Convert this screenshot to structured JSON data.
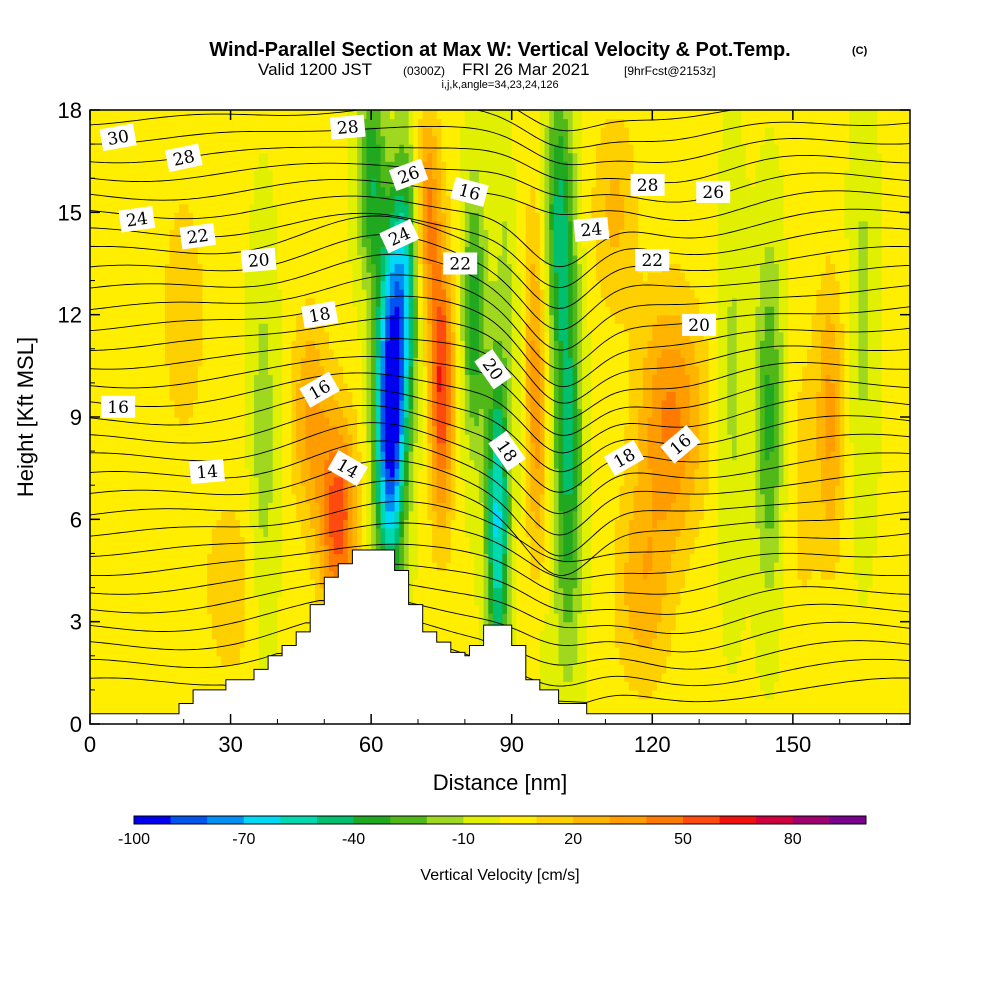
{
  "chart_data": {
    "type": "heatmap",
    "title": "Wind-Parallel Section at Max W: Vertical Velocity & Pot.Temp.",
    "title_mark": "(C)",
    "subtitle_prefix": "Valid 1200 JST",
    "subtitle_utc": "(0300Z)",
    "subtitle_date": "FRI 26 Mar 2021",
    "subtitle_fcst": "[9hrFcst@2153z]",
    "subtitle2": "i,j,k,angle=34,23,24,126",
    "xlabel": "Distance [nm]",
    "ylabel": "Height [Kft MSL]",
    "xlim": [
      0,
      175
    ],
    "ylim": [
      0,
      18
    ],
    "xticks": [
      0,
      30,
      60,
      90,
      120,
      150
    ],
    "yticks": [
      0,
      3,
      6,
      9,
      12,
      15,
      18
    ],
    "colorbar": {
      "label": "Vertical Velocity [cm/s]",
      "min": -100,
      "max": 100,
      "tick_labels": [
        "-100",
        "-70",
        "-40",
        "-10",
        "20",
        "50",
        "80"
      ],
      "tick_values": [
        -100,
        -70,
        -40,
        -10,
        20,
        50,
        80
      ],
      "colors": [
        "#0000ee",
        "#0055f0",
        "#0090f5",
        "#00d8f8",
        "#00d8b0",
        "#00c070",
        "#20a820",
        "#50b818",
        "#a0d820",
        "#e0f000",
        "#ffee00",
        "#ffd000",
        "#ffb400",
        "#ff9c00",
        "#ff7a00",
        "#ff4a10",
        "#f01010",
        "#d00040",
        "#a00070",
        "#7a0090"
      ]
    },
    "theta_contour_labels": [
      "30",
      "28",
      "24",
      "22",
      "20",
      "18",
      "16",
      "14",
      "28",
      "26",
      "24",
      "22",
      "20",
      "18",
      "16",
      "24",
      "28",
      "26",
      "22",
      "20",
      "18",
      "16"
    ]
  }
}
